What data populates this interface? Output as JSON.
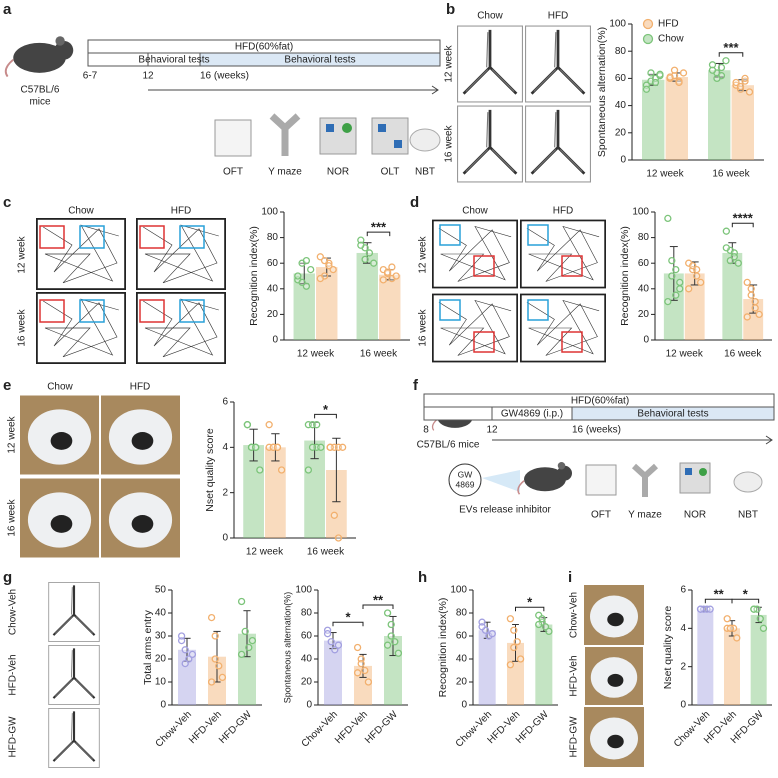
{
  "panels": {
    "a": {
      "label": "a",
      "timeline": {
        "top": "HFD(60%fat)",
        "segments": [
          "Behavioral tests",
          "Behavioral tests"
        ],
        "ticks": [
          "6-7",
          "12",
          "16 (weeks)"
        ]
      },
      "mouse": [
        "C57BL/6",
        "mice"
      ],
      "tests": [
        "OFT",
        "Y maze",
        "NOR",
        "OLT",
        "NBT"
      ]
    },
    "b": {
      "label": "b",
      "columns": [
        "Chow",
        "HFD"
      ],
      "rows": [
        "12 week",
        "16 week"
      ]
    },
    "c": {
      "label": "c",
      "columns": [
        "Chow",
        "HFD"
      ],
      "rows": [
        "12 week",
        "16 week"
      ]
    },
    "d": {
      "label": "d",
      "columns": [
        "Chow",
        "HFD"
      ],
      "rows": [
        "12 week",
        "16 week"
      ]
    },
    "e": {
      "label": "e",
      "columns": [
        "Chow",
        "HFD"
      ],
      "rows": [
        "12 week",
        "16 week"
      ]
    },
    "f": {
      "label": "f",
      "timeline": {
        "top": "HFD(60%fat)",
        "segments": [
          "GW4869 (i.p.)",
          "Behavioral tests"
        ],
        "ticks": [
          "8",
          "12",
          "16 (weeks)"
        ]
      },
      "mouse": "C57BL/6 mice",
      "drug": [
        "GW",
        "4869"
      ],
      "drug_note": "EVs release inhibitor",
      "tests": [
        "OFT",
        "Y maze",
        "NOR",
        "NBT"
      ]
    },
    "g": {
      "label": "g",
      "rows": [
        "Chow-Veh",
        "HFD-Veh",
        "HFD-GW"
      ]
    },
    "h": {
      "label": "h"
    },
    "i": {
      "label": "i",
      "rows": [
        "Chow-Veh",
        "HFD-Veh",
        "HFD-GW"
      ]
    }
  },
  "chart_data": [
    {
      "type": "bar",
      "ylabel": "Spontaneous alternation(%)",
      "categories": [
        "12 week",
        "16 week"
      ],
      "legend": "upper left",
      "legend_order": "reversed",
      "series": [
        {
          "name": "Chow",
          "color": "#7cc47a",
          "values": [
            59,
            66
          ],
          "errors": [
            4,
            5
          ],
          "points": [
            [
              55,
              58,
              60,
              62,
              52,
              64,
              57,
              63
            ],
            [
              70,
              64,
              62,
              73,
              66,
              60,
              68
            ]
          ]
        },
        {
          "name": "HFD",
          "color": "#f2b06e",
          "values": [
            61,
            55
          ],
          "errors": [
            3,
            4
          ],
          "points": [
            [
              60,
              62,
              58,
              64,
              61,
              66,
              57
            ],
            [
              55,
              52,
              58,
              50,
              57,
              54,
              60
            ]
          ]
        }
      ],
      "ylim": [
        0,
        100
      ],
      "yticks": [
        0,
        20,
        40,
        60,
        80,
        100
      ],
      "annotations": [
        {
          "label": "***",
          "within": "16 week"
        }
      ]
    },
    {
      "type": "bar",
      "ylabel": "Recognition index(%)",
      "categories": [
        "12 week",
        "16 week"
      ],
      "series": [
        {
          "color": "#7cc47a",
          "values": [
            52,
            68
          ],
          "errors": [
            8,
            8
          ],
          "points": [
            [
              47,
              60,
              42,
              55,
              50,
              45,
              62
            ],
            [
              78,
              72,
              68,
              60,
              74,
              63
            ]
          ]
        },
        {
          "color": "#f2b06e",
          "values": [
            57,
            51
          ],
          "errors": [
            7,
            4
          ],
          "points": [
            [
              65,
              50,
              60,
              55,
              48,
              62,
              58
            ],
            [
              55,
              52,
              48,
              50,
              47,
              53,
              57
            ]
          ]
        }
      ],
      "ylim": [
        0,
        100
      ],
      "yticks": [
        0,
        20,
        40,
        60,
        80,
        100
      ],
      "annotations": [
        {
          "label": "***",
          "within": "16 week"
        }
      ]
    },
    {
      "type": "bar",
      "ylabel": "Recognition index(%)",
      "categories": [
        "12 week",
        "16 week"
      ],
      "series": [
        {
          "color": "#7cc47a",
          "values": [
            52,
            68
          ],
          "errors": [
            21,
            8
          ],
          "points": [
            [
              95,
              62,
              55,
              40,
              30,
              50,
              35,
              45
            ],
            [
              85,
              70,
              68,
              60,
              72,
              62,
              65
            ]
          ]
        },
        {
          "color": "#f2b06e",
          "values": [
            52,
            32
          ],
          "errors": [
            9,
            11
          ],
          "points": [
            [
              60,
              55,
              50,
              45,
              40,
              58,
              55
            ],
            [
              45,
              35,
              25,
              20,
              18,
              40,
              30
            ]
          ]
        }
      ],
      "ylim": [
        0,
        100
      ],
      "yticks": [
        0,
        20,
        40,
        60,
        80,
        100
      ],
      "annotations": [
        {
          "label": "****",
          "within": "16 week"
        }
      ]
    },
    {
      "type": "bar",
      "ylabel": "Nset quality score",
      "categories": [
        "12 week",
        "16 week"
      ],
      "series": [
        {
          "color": "#7cc47a",
          "values": [
            4.1,
            4.3
          ],
          "errors": [
            0.7,
            0.8
          ],
          "points": [
            [
              5,
              4,
              4,
              3,
              5,
              4,
              4
            ],
            [
              5,
              5,
              4,
              4,
              3,
              4,
              5
            ]
          ]
        },
        {
          "color": "#f2b06e",
          "values": [
            4.0,
            3.0
          ],
          "errors": [
            0.6,
            1.4
          ],
          "points": [
            [
              5,
              4,
              4,
              3,
              4,
              4,
              4
            ],
            [
              4,
              4,
              4,
              4,
              4,
              1,
              0
            ]
          ]
        }
      ],
      "ylim": [
        0,
        6
      ],
      "yticks": [
        0,
        2,
        4,
        6
      ],
      "annotations": [
        {
          "label": "*",
          "within": "16 week"
        }
      ]
    },
    {
      "type": "bar",
      "ylabel": "Total arms entry",
      "categories": [
        "Chow-Veh",
        "HFD-Veh",
        "HFD-GW"
      ],
      "colors": [
        "#a29fe0",
        "#f2b06e",
        "#7cc47a"
      ],
      "values": [
        24,
        21,
        31
      ],
      "errors": [
        5,
        11,
        10
      ],
      "points": [
        [
          28,
          24,
          20,
          22,
          30,
          18
        ],
        [
          38,
          30,
          17,
          12,
          10,
          20
        ],
        [
          45,
          32,
          25,
          28,
          22
        ]
      ],
      "ylim": [
        0,
        50
      ],
      "yticks": [
        0,
        10,
        20,
        30,
        40,
        50
      ]
    },
    {
      "type": "bar",
      "ylabel": "Spontaneous alternation(%)",
      "categories": [
        "Chow-Veh",
        "HFD-Veh",
        "HFD-GW"
      ],
      "colors": [
        "#a29fe0",
        "#f2b06e",
        "#7cc47a"
      ],
      "values": [
        56,
        34,
        60
      ],
      "errors": [
        7,
        10,
        17
      ],
      "points": [
        [
          65,
          55,
          48,
          52,
          62
        ],
        [
          50,
          40,
          30,
          20,
          28,
          36
        ],
        [
          80,
          70,
          55,
          45,
          52,
          60
        ]
      ],
      "ylim": [
        0,
        100
      ],
      "yticks": [
        0,
        20,
        40,
        60,
        80,
        100
      ],
      "annotations": [
        {
          "label": "*",
          "pair": [
            "Chow-Veh",
            "HFD-Veh"
          ]
        },
        {
          "label": "**",
          "pair": [
            "HFD-Veh",
            "HFD-GW"
          ]
        }
      ]
    },
    {
      "type": "bar",
      "ylabel": "Recognition index(%)",
      "categories": [
        "Chow-Veh",
        "HFD-Veh",
        "HFD-GW"
      ],
      "colors": [
        "#a29fe0",
        "#f2b06e",
        "#7cc47a"
      ],
      "values": [
        65,
        54,
        70
      ],
      "errors": [
        7,
        16,
        6
      ],
      "points": [
        [
          72,
          65,
          60,
          62,
          68
        ],
        [
          75,
          65,
          55,
          40,
          35,
          50
        ],
        [
          78,
          72,
          68,
          64,
          70,
          75
        ]
      ],
      "ylim": [
        0,
        100
      ],
      "yticks": [
        0,
        20,
        40,
        60,
        80,
        100
      ],
      "annotations": [
        {
          "label": "*",
          "pair": [
            "HFD-Veh",
            "HFD-GW"
          ]
        }
      ]
    },
    {
      "type": "bar",
      "ylabel": "Nset quality score",
      "categories": [
        "Chow-Veh",
        "HFD-Veh",
        "HFD-GW"
      ],
      "colors": [
        "#a29fe0",
        "#f2b06e",
        "#7cc47a"
      ],
      "values": [
        5.0,
        4.0,
        4.7
      ],
      "errors": [
        0.1,
        0.4,
        0.4
      ],
      "points": [
        [
          5,
          5,
          5,
          5,
          5
        ],
        [
          4,
          4,
          4,
          3.5,
          4.5,
          4
        ],
        [
          5,
          5,
          4.5,
          4,
          5
        ]
      ],
      "ylim": [
        0,
        6
      ],
      "yticks": [
        0,
        2,
        4,
        6
      ],
      "annotations": [
        {
          "label": "**",
          "pair": [
            "Chow-Veh",
            "HFD-Veh"
          ]
        },
        {
          "label": "*",
          "pair": [
            "HFD-Veh",
            "HFD-GW"
          ]
        }
      ]
    }
  ]
}
